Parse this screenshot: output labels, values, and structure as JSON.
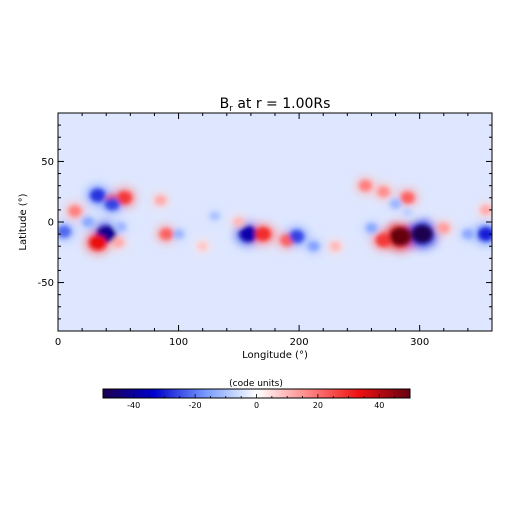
{
  "chart_data": {
    "type": "heatmap",
    "title": "B",
    "title_subscript": "r",
    "title_suffix": " at r = 1.00Rs",
    "xlabel": "Longitude (°)",
    "ylabel": "Latitude (°)",
    "xlim": [
      0,
      360
    ],
    "ylim": [
      -90,
      90
    ],
    "xticks": [
      0,
      100,
      200,
      300
    ],
    "yticks": [
      -50,
      0,
      50
    ],
    "colorbar": {
      "label": "(code units)",
      "range": [
        -50,
        50
      ],
      "ticks": [
        -40,
        -20,
        0,
        20,
        40
      ],
      "colors": [
        "#1a0050",
        "#0000cc",
        "#7799ff",
        "#ffffff",
        "#ff8888",
        "#ee1111",
        "#660011"
      ]
    },
    "background_value": -4,
    "features": [
      {
        "lon": 40,
        "lat": -10,
        "value": -42
      },
      {
        "lon": 52,
        "lat": -4,
        "value": -12
      },
      {
        "lon": 33,
        "lat": -17,
        "value": 34
      },
      {
        "lon": 50,
        "lat": -17,
        "value": 12
      },
      {
        "lon": 55,
        "lat": 20,
        "value": 28
      },
      {
        "lon": 45,
        "lat": 18,
        "value": 22
      },
      {
        "lon": 33,
        "lat": 22,
        "value": -28
      },
      {
        "lon": 45,
        "lat": 15,
        "value": -26
      },
      {
        "lon": 14,
        "lat": 9,
        "value": 18
      },
      {
        "lon": 5,
        "lat": -8,
        "value": -22
      },
      {
        "lon": 25,
        "lat": 0,
        "value": -14
      },
      {
        "lon": 90,
        "lat": -10,
        "value": 22
      },
      {
        "lon": 100,
        "lat": -10,
        "value": -12
      },
      {
        "lon": 85,
        "lat": 18,
        "value": 12
      },
      {
        "lon": 150,
        "lat": 0,
        "value": 10
      },
      {
        "lon": 158,
        "lat": -10,
        "value": -38
      },
      {
        "lon": 170,
        "lat": -10,
        "value": 30
      },
      {
        "lon": 190,
        "lat": -15,
        "value": 22
      },
      {
        "lon": 198,
        "lat": -12,
        "value": -26
      },
      {
        "lon": 212,
        "lat": -20,
        "value": -15
      },
      {
        "lon": 230,
        "lat": -20,
        "value": 10
      },
      {
        "lon": 255,
        "lat": 30,
        "value": 18
      },
      {
        "lon": 270,
        "lat": 25,
        "value": 16
      },
      {
        "lon": 290,
        "lat": 20,
        "value": 22
      },
      {
        "lon": 280,
        "lat": 15,
        "value": -12
      },
      {
        "lon": 290,
        "lat": 8,
        "value": -8
      },
      {
        "lon": 260,
        "lat": -5,
        "value": -14
      },
      {
        "lon": 270,
        "lat": -15,
        "value": 28
      },
      {
        "lon": 284,
        "lat": -12,
        "value": 52
      },
      {
        "lon": 302,
        "lat": -10,
        "value": -50
      },
      {
        "lon": 320,
        "lat": -5,
        "value": 14
      },
      {
        "lon": 340,
        "lat": -10,
        "value": -14
      },
      {
        "lon": 355,
        "lat": -10,
        "value": -30
      },
      {
        "lon": 355,
        "lat": 10,
        "value": 12
      },
      {
        "lon": 130,
        "lat": 5,
        "value": -10
      },
      {
        "lon": 120,
        "lat": -20,
        "value": 8
      }
    ]
  }
}
